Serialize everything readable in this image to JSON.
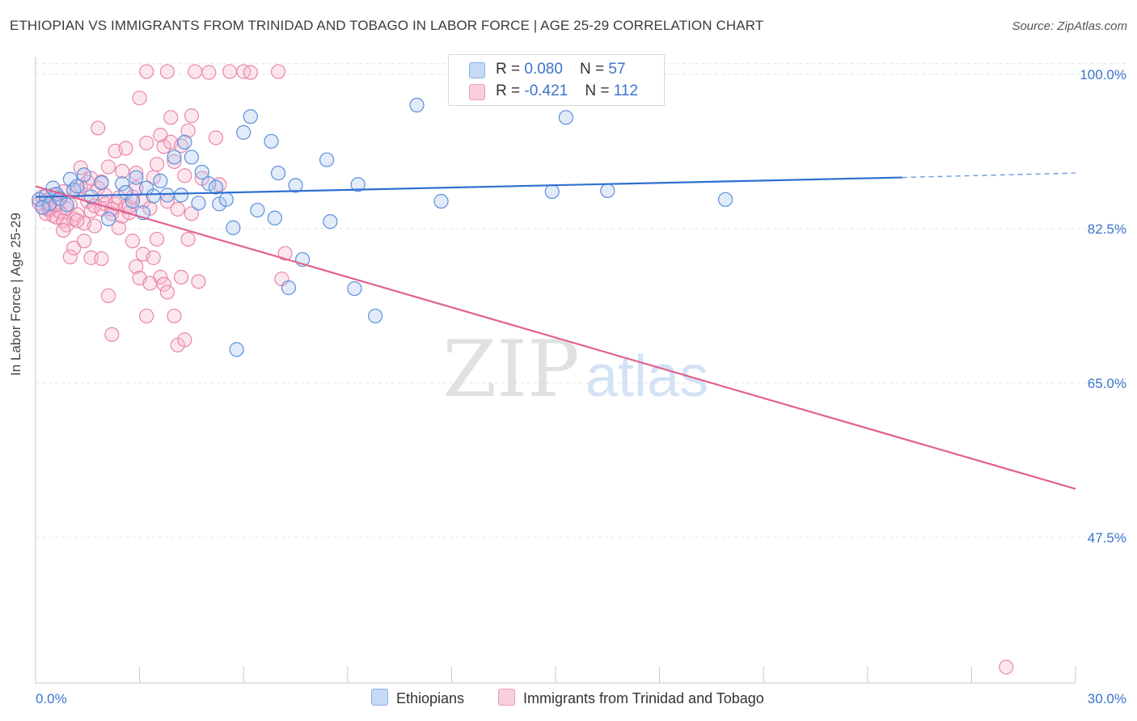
{
  "title": "ETHIOPIAN VS IMMIGRANTS FROM TRINIDAD AND TOBAGO IN LABOR FORCE | AGE 25-29 CORRELATION CHART",
  "source": "Source: ZipAtlas.com",
  "watermark": {
    "zip": "ZIP",
    "atlas": "atlas"
  },
  "legend": {
    "series1": {
      "r_label": "R = ",
      "r_value": "0.080",
      "n_label": "N = ",
      "n_value": "57"
    },
    "series2": {
      "r_label": "R = ",
      "r_value": "-0.421",
      "n_label": "N = ",
      "n_value": "112"
    }
  },
  "colors": {
    "ethiopians": "#6fa1e6",
    "trinidad": "#ef8fb1",
    "blue_line": "#2f6fd0",
    "pink_line": "#e0628f",
    "axis_text": "#3a74cc"
  },
  "chart_data": {
    "type": "scatter",
    "title": "ETHIOPIAN VS IMMIGRANTS FROM TRINIDAD AND TOBAGO IN LABOR FORCE | AGE 25-29 CORRELATION CHART",
    "xlabel": "",
    "ylabel": "In Labor Force | Age 25-29",
    "xlim": [
      0,
      30
    ],
    "ylim": [
      31,
      102
    ],
    "x_tick_labels": [
      "0.0%",
      "30.0%"
    ],
    "y_ticks": [
      100,
      82.5,
      65,
      47.5
    ],
    "y_tick_labels": [
      "100.0%",
      "82.5%",
      "65.0%",
      "47.5%"
    ],
    "grid": true,
    "legend_position": "top-center",
    "series": [
      {
        "name": "Ethiopians",
        "color": "#6fa1e6",
        "trend": {
          "x": [
            0,
            25
          ],
          "y": [
            86.1,
            88.3
          ],
          "dashed_to": [
            30,
            88.8
          ]
        },
        "points": [
          [
            0.1,
            85.8
          ],
          [
            0.3,
            86.2
          ],
          [
            0.4,
            85.3
          ],
          [
            0.5,
            87.1
          ],
          [
            0.6,
            86.4
          ],
          [
            0.7,
            85.9
          ],
          [
            0.9,
            85.2
          ],
          [
            1.0,
            88.1
          ],
          [
            1.1,
            86.9
          ],
          [
            1.2,
            87.3
          ],
          [
            1.4,
            88.6
          ],
          [
            1.6,
            86.1
          ],
          [
            1.9,
            87.7
          ],
          [
            2.1,
            83.6
          ],
          [
            2.5,
            87.6
          ],
          [
            2.6,
            86.6
          ],
          [
            2.8,
            85.6
          ],
          [
            2.9,
            88.3
          ],
          [
            3.1,
            84.3
          ],
          [
            3.2,
            87.1
          ],
          [
            3.4,
            86.2
          ],
          [
            3.6,
            87.9
          ],
          [
            3.8,
            86.3
          ],
          [
            4.0,
            90.6
          ],
          [
            4.2,
            86.3
          ],
          [
            4.3,
            92.3
          ],
          [
            4.5,
            90.6
          ],
          [
            4.7,
            85.4
          ],
          [
            4.8,
            88.9
          ],
          [
            5.0,
            87.6
          ],
          [
            5.2,
            87.2
          ],
          [
            5.3,
            85.3
          ],
          [
            5.5,
            85.8
          ],
          [
            5.7,
            82.6
          ],
          [
            5.8,
            68.8
          ],
          [
            6.0,
            93.4
          ],
          [
            6.2,
            95.2
          ],
          [
            6.4,
            84.6
          ],
          [
            6.8,
            92.4
          ],
          [
            6.9,
            83.7
          ],
          [
            7.0,
            88.8
          ],
          [
            7.3,
            75.8
          ],
          [
            7.5,
            87.4
          ],
          [
            7.7,
            79.0
          ],
          [
            8.4,
            90.3
          ],
          [
            8.5,
            83.3
          ],
          [
            9.2,
            75.7
          ],
          [
            9.3,
            87.5
          ],
          [
            9.8,
            72.6
          ],
          [
            11.0,
            96.5
          ],
          [
            11.7,
            85.6
          ],
          [
            12.9,
            100.6
          ],
          [
            14.9,
            86.7
          ],
          [
            15.3,
            95.1
          ],
          [
            16.5,
            86.8
          ],
          [
            19.9,
            85.8
          ],
          [
            0.2,
            84.9
          ]
        ]
      },
      {
        "name": "Immigrants from Trinidad and Tobago",
        "color": "#ef8fb1",
        "trend": {
          "x": [
            0,
            30
          ],
          "y": [
            87.3,
            53.0
          ]
        },
        "points": [
          [
            0.1,
            85.4
          ],
          [
            0.2,
            84.9
          ],
          [
            0.2,
            86.1
          ],
          [
            0.3,
            84.2
          ],
          [
            0.3,
            85.7
          ],
          [
            0.4,
            84.6
          ],
          [
            0.4,
            85.1
          ],
          [
            0.5,
            84.0
          ],
          [
            0.5,
            86.3
          ],
          [
            0.6,
            85.5
          ],
          [
            0.6,
            83.8
          ],
          [
            0.7,
            84.4
          ],
          [
            0.7,
            85.9
          ],
          [
            0.8,
            83.4
          ],
          [
            0.8,
            86.7
          ],
          [
            0.9,
            84.8
          ],
          [
            0.9,
            82.9
          ],
          [
            1.0,
            85.2
          ],
          [
            1.0,
            79.3
          ],
          [
            1.1,
            83.6
          ],
          [
            1.1,
            80.3
          ],
          [
            1.2,
            86.8
          ],
          [
            1.2,
            84.1
          ],
          [
            1.3,
            87.3
          ],
          [
            1.3,
            89.4
          ],
          [
            1.4,
            83.1
          ],
          [
            1.4,
            81.1
          ],
          [
            1.5,
            85.6
          ],
          [
            1.5,
            87.8
          ],
          [
            1.6,
            84.5
          ],
          [
            1.6,
            79.2
          ],
          [
            1.7,
            82.8
          ],
          [
            1.7,
            85.1
          ],
          [
            1.8,
            93.9
          ],
          [
            1.8,
            87.1
          ],
          [
            1.9,
            84.7
          ],
          [
            1.9,
            79.1
          ],
          [
            2.0,
            86.3
          ],
          [
            2.0,
            85.3
          ],
          [
            2.1,
            89.5
          ],
          [
            2.1,
            74.9
          ],
          [
            2.2,
            70.5
          ],
          [
            2.2,
            84.2
          ],
          [
            2.3,
            85.3
          ],
          [
            2.3,
            91.3
          ],
          [
            2.4,
            82.6
          ],
          [
            2.4,
            86.0
          ],
          [
            2.5,
            89.0
          ],
          [
            2.5,
            83.9
          ],
          [
            2.6,
            85.0
          ],
          [
            2.6,
            91.6
          ],
          [
            2.7,
            84.3
          ],
          [
            2.7,
            85.0
          ],
          [
            2.8,
            81.1
          ],
          [
            2.8,
            86.1
          ],
          [
            2.9,
            87.1
          ],
          [
            2.9,
            78.2
          ],
          [
            3.0,
            97.3
          ],
          [
            3.0,
            76.9
          ],
          [
            3.1,
            85.6
          ],
          [
            3.1,
            79.6
          ],
          [
            3.2,
            92.2
          ],
          [
            3.2,
            72.6
          ],
          [
            3.3,
            76.3
          ],
          [
            3.3,
            84.8
          ],
          [
            3.4,
            79.2
          ],
          [
            3.4,
            88.3
          ],
          [
            3.5,
            81.3
          ],
          [
            3.5,
            89.8
          ],
          [
            3.6,
            93.1
          ],
          [
            3.6,
            77.0
          ],
          [
            3.7,
            91.8
          ],
          [
            3.7,
            76.2
          ],
          [
            3.8,
            85.6
          ],
          [
            3.8,
            75.3
          ],
          [
            3.9,
            92.3
          ],
          [
            3.9,
            95.1
          ],
          [
            4.0,
            90.1
          ],
          [
            4.0,
            72.6
          ],
          [
            4.1,
            84.7
          ],
          [
            4.1,
            69.3
          ],
          [
            4.2,
            91.9
          ],
          [
            4.2,
            77.0
          ],
          [
            4.3,
            88.5
          ],
          [
            4.3,
            69.9
          ],
          [
            4.4,
            93.6
          ],
          [
            4.4,
            81.3
          ],
          [
            4.5,
            95.3
          ],
          [
            4.5,
            84.2
          ],
          [
            4.6,
            100.3
          ],
          [
            4.7,
            76.5
          ],
          [
            4.8,
            88.2
          ],
          [
            5.0,
            100.2
          ],
          [
            5.2,
            92.8
          ],
          [
            5.3,
            87.5
          ],
          [
            5.6,
            100.3
          ],
          [
            6.0,
            100.3
          ],
          [
            6.2,
            100.2
          ],
          [
            7.0,
            100.3
          ],
          [
            7.2,
            79.7
          ],
          [
            7.1,
            76.8
          ],
          [
            3.2,
            100.3
          ],
          [
            3.8,
            100.3
          ],
          [
            2.9,
            88.8
          ],
          [
            1.6,
            88.2
          ],
          [
            1.9,
            87.8
          ],
          [
            2.2,
            84.7
          ],
          [
            1.2,
            83.4
          ],
          [
            0.8,
            82.3
          ],
          [
            0.4,
            84.8
          ],
          [
            0.6,
            85.2
          ],
          [
            28.0,
            32.8
          ]
        ]
      }
    ]
  },
  "bottom_legend": {
    "item1": "Ethiopians",
    "item2": "Immigrants from Trinidad and Tobago"
  }
}
